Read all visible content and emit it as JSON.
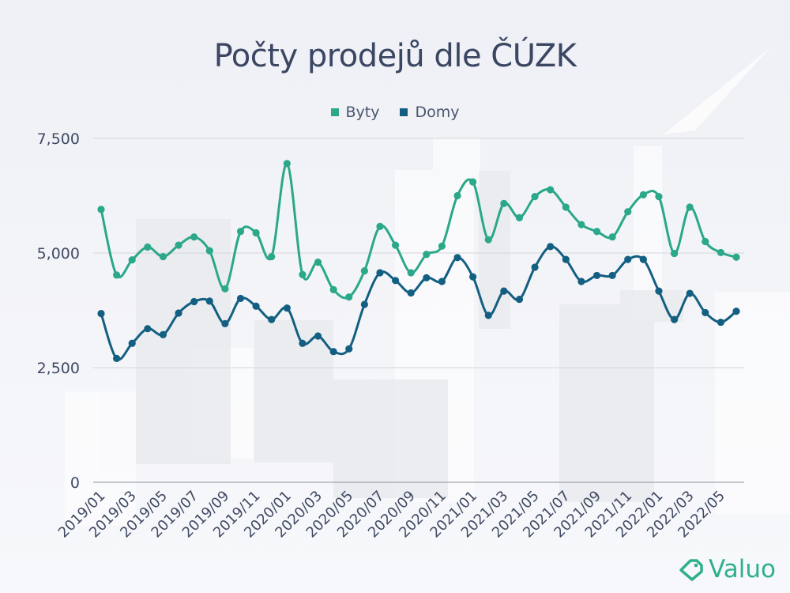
{
  "colors": {
    "byty": "#2aa889",
    "domy": "#135f82",
    "axis_text": "#3f4a63",
    "grid": "#d4d6dc",
    "brand": "#2fb08a"
  },
  "brand": {
    "name": "Valuo",
    "icon": "tag-icon"
  },
  "chart_data": {
    "type": "line",
    "title": "Počty prodejů dle ČÚZK",
    "xlabel": "",
    "ylabel": "",
    "ylim": [
      0,
      7500
    ],
    "yticks": [
      0,
      2500,
      5000,
      7500
    ],
    "ytick_labels": [
      "0",
      "2,500",
      "5,000",
      "7,500"
    ],
    "grid": true,
    "legend_position": "top-center",
    "x": [
      "2019/01",
      "2019/02",
      "2019/03",
      "2019/04",
      "2019/05",
      "2019/06",
      "2019/07",
      "2019/08",
      "2019/09",
      "2019/10",
      "2019/11",
      "2019/12",
      "2020/01",
      "2020/02",
      "2020/03",
      "2020/04",
      "2020/05",
      "2020/06",
      "2020/07",
      "2020/08",
      "2020/09",
      "2020/10",
      "2020/11",
      "2020/12",
      "2021/01",
      "2021/02",
      "2021/03",
      "2021/04",
      "2021/05",
      "2021/06",
      "2021/07",
      "2021/08",
      "2021/09",
      "2021/10",
      "2021/11",
      "2021/12",
      "2022/01",
      "2022/02",
      "2022/03",
      "2022/04",
      "2022/05",
      "2022/06"
    ],
    "xtick_labels": [
      "2019/01",
      "2019/03",
      "2019/05",
      "2019/07",
      "2019/09",
      "2019/11",
      "2020/01",
      "2020/03",
      "2020/05",
      "2020/07",
      "2020/09",
      "2020/11",
      "2021/01",
      "2021/03",
      "2021/05",
      "2021/07",
      "2021/09",
      "2021/11",
      "2022/01",
      "2022/03",
      "2022/05"
    ],
    "series": [
      {
        "name": "Byty",
        "values": [
          5950,
          4520,
          4850,
          5130,
          4920,
          5170,
          5350,
          5050,
          4220,
          5470,
          5440,
          4920,
          6950,
          4530,
          4800,
          4200,
          4040,
          4610,
          5580,
          5170,
          4570,
          4970,
          5150,
          6250,
          6550,
          5290,
          6080,
          5770,
          6230,
          6380,
          6000,
          5620,
          5470,
          5350,
          5900,
          6270,
          6230,
          4990,
          6000,
          5250,
          5010,
          4910
        ]
      },
      {
        "name": "Domy",
        "values": [
          3680,
          2700,
          3030,
          3350,
          3220,
          3690,
          3940,
          3950,
          3460,
          4010,
          3840,
          3550,
          3800,
          3030,
          3190,
          2850,
          2910,
          3880,
          4570,
          4400,
          4130,
          4460,
          4380,
          4900,
          4480,
          3640,
          4170,
          3990,
          4690,
          5140,
          4860,
          4380,
          4510,
          4510,
          4860,
          4860,
          4170,
          3550,
          4120,
          3700,
          3490,
          3730
        ]
      }
    ]
  }
}
